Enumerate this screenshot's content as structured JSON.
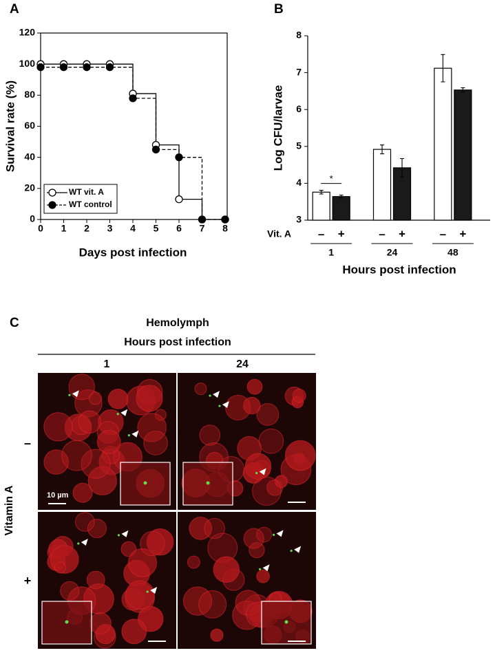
{
  "chart_data": [
    {
      "type": "line",
      "panel_label": "A",
      "step": true,
      "xlabel": "Days post infection",
      "ylabel": "Survival rate (%)",
      "x": [
        0,
        1,
        2,
        3,
        4,
        5,
        6,
        7,
        8
      ],
      "xlim": [
        0,
        8
      ],
      "xticks": [
        0,
        1,
        2,
        3,
        4,
        5,
        6,
        7,
        8
      ],
      "ylim": [
        0,
        120
      ],
      "yticks": [
        0,
        20,
        40,
        60,
        80,
        100,
        120
      ],
      "legend": "lower left",
      "series": [
        {
          "name": "WT vit. A",
          "color": "#000000",
          "marker_fill": "#ffffff",
          "linestyle": "solid",
          "values": [
            100,
            100,
            100,
            100,
            81,
            48,
            13,
            0,
            0
          ]
        },
        {
          "name": "WT control",
          "color": "#000000",
          "marker_fill": "#000000",
          "linestyle": "dashed",
          "values": [
            98,
            98,
            98,
            98,
            78,
            45,
            40,
            0,
            0
          ]
        }
      ]
    },
    {
      "type": "bar",
      "panel_label": "B",
      "ylabel": "Log CFU/larvae",
      "xlabel": "Hours post infection",
      "group_label": "Vit. A",
      "categories": [
        "1",
        "24",
        "48"
      ],
      "ylim": [
        3,
        8
      ],
      "yticks": [
        3,
        4,
        5,
        6,
        7,
        8
      ],
      "significance": "*",
      "series": [
        {
          "name": "–",
          "color": "#ffffff",
          "values": [
            3.76,
            4.92,
            7.12
          ],
          "errors": [
            0.05,
            0.12,
            0.37
          ]
        },
        {
          "name": "+",
          "color": "#1a1a1a",
          "values": [
            3.64,
            4.42,
            6.53
          ],
          "errors": [
            0.04,
            0.25,
            0.06
          ]
        }
      ]
    }
  ],
  "panel_c": {
    "panel_label": "C",
    "title": "Hemolymph",
    "subtitle": "Hours post infection",
    "columns": [
      "1",
      "24"
    ],
    "row_title": "Vitamin A",
    "rows": [
      "–",
      "+"
    ],
    "scale_bar": "10 µm"
  }
}
